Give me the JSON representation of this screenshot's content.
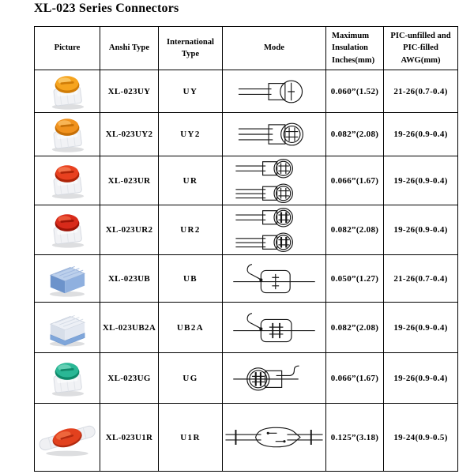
{
  "page": {
    "title": "XL-023 Series Connectors"
  },
  "table": {
    "headers": [
      "Picture",
      "Anshi Type",
      "International Type",
      "Mode",
      "Maximum Insulation Inches(mm)",
      "PIC-unfilled and PIC-filled AWG(mm)"
    ],
    "rows": [
      {
        "picture": {
          "shape": "cap-connector",
          "label": "orange-cap-splice-connector",
          "cap": "#F6A41E",
          "cap_dark": "#D07C06",
          "cap_light": "#FBC968",
          "body": "#F1F2F5"
        },
        "anshi_type": "XL-023UY",
        "international_type": "UY",
        "mode_icon": "uy",
        "max_insulation": "0.060”(1.52)",
        "awg": "21-26(0.7-0.4)"
      },
      {
        "picture": {
          "shape": "cap-connector",
          "label": "orange-cap-splice-connector",
          "cap": "#F0921E",
          "cap_dark": "#C66F06",
          "cap_light": "#F8B95B",
          "body": "#F1F2F5"
        },
        "anshi_type": "XL-023UY2",
        "international_type": "UY2",
        "mode_icon": "uy2",
        "max_insulation": "0.082”(2.08)",
        "awg": "19-26(0.9-0.4)"
      },
      {
        "picture": {
          "shape": "cap-connector",
          "label": "red-cap-splice-connector",
          "cap": "#E8401F",
          "cap_dark": "#AE2408",
          "cap_light": "#F3764D",
          "body": "#F1F2F5"
        },
        "anshi_type": "XL-023UR",
        "international_type": "UR",
        "mode_icon": "ur",
        "max_insulation": "0.066”(1.67)",
        "awg": "19-26(0.9-0.4)"
      },
      {
        "picture": {
          "shape": "cap-connector",
          "label": "dark-red-cap-splice-connector",
          "cap": "#D82A1A",
          "cap_dark": "#9E1407",
          "cap_light": "#EC5B3C",
          "body": "#F1F2F5"
        },
        "anshi_type": "XL-023UR2",
        "international_type": "UR2",
        "mode_icon": "ur2",
        "max_insulation": "0.082”(2.08)",
        "awg": "19-26(0.9-0.4)"
      },
      {
        "picture": {
          "shape": "block-blue",
          "label": "blue-block-connector",
          "top": "#BCD0EC",
          "left": "#6C93CB",
          "right": "#8FB0DF"
        },
        "anshi_type": "XL-023UB",
        "international_type": "UB",
        "mode_icon": "ub",
        "max_insulation": "0.050”(1.27)",
        "awg": "21-26(0.7-0.4)"
      },
      {
        "picture": {
          "shape": "block-clear",
          "label": "clear-block-connector-on-blue-base",
          "top": "#EDF0F6",
          "left": "#D7DEE9",
          "right": "#E3E8F1",
          "base": "#7FA6DA"
        },
        "anshi_type": "XL-023UB2A",
        "international_type": "UB2A",
        "mode_icon": "ub2a",
        "max_insulation": "0.082”(2.08)",
        "awg": "19-26(0.9-0.4)"
      },
      {
        "picture": {
          "shape": "cap-connector",
          "label": "green-cap-splice-connector",
          "cap": "#2AB795",
          "cap_dark": "#0F8A6A",
          "cap_light": "#6AD2B7",
          "body": "#F1F2F5"
        },
        "anshi_type": "XL-023UG",
        "international_type": "UG",
        "mode_icon": "ug",
        "max_insulation": "0.066”(1.67)",
        "awg": "19-26(0.9-0.4)"
      },
      {
        "picture": {
          "shape": "inline-red",
          "label": "red-inline-splice-connector",
          "cap": "#E2411E",
          "cap_dark": "#B22A10",
          "cap_light": "#EE6A3F",
          "body": "#EFF0F3"
        },
        "anshi_type": "XL-023U1R",
        "international_type": "U1R",
        "mode_icon": "u1r",
        "max_insulation": "0.125”(3.18)",
        "awg": "19-24(0.9-0.5)"
      }
    ]
  }
}
